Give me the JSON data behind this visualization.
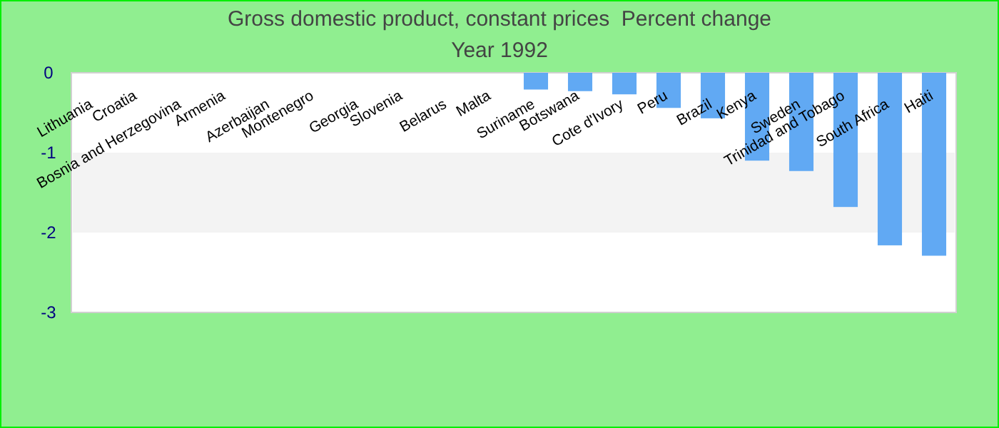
{
  "chart_data": {
    "type": "bar",
    "title": "Gross domestic product, constant prices  Percent change",
    "subtitle": "Year 1992",
    "categories": [
      "Lithuania",
      "Croatia",
      "Bosnia and Herzegovina",
      "Armenia",
      "Azerbaijan",
      "Montenegro",
      "Georgia",
      "Slovenia",
      "Belarus",
      "Malta",
      "Suriname",
      "Botswana",
      "Cote d'Ivory",
      "Peru",
      "Brazil",
      "Kenya",
      "Sweden",
      "Trinidad and Tobago",
      "South Africa",
      "Haiti"
    ],
    "values": [
      null,
      null,
      null,
      null,
      null,
      null,
      null,
      null,
      null,
      null,
      -0.21,
      -0.23,
      -0.27,
      -0.44,
      -0.57,
      -1.1,
      -1.23,
      -1.68,
      -2.16,
      -2.29
    ],
    "color": "#61a9f3",
    "ylim": [
      -3,
      0
    ],
    "yticks": [
      0,
      -1,
      -2,
      -3
    ],
    "bands": [
      {
        "axis": "y",
        "from": -2,
        "to": -1,
        "color": "#f3f3f3"
      }
    ]
  }
}
